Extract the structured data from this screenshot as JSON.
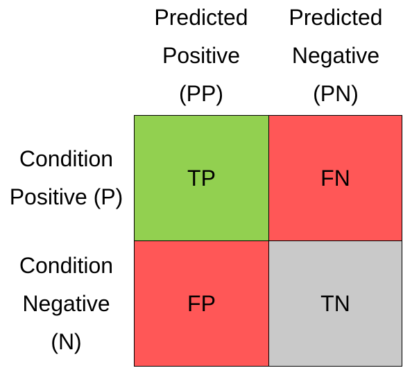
{
  "columns": [
    {
      "lines": [
        "Predicted",
        "Positive",
        "(PP)"
      ]
    },
    {
      "lines": [
        "Predicted",
        "Negative",
        "(PN)"
      ]
    }
  ],
  "rows": [
    {
      "lines": [
        "Condition",
        "Positive (P)"
      ]
    },
    {
      "lines": [
        "Condition",
        "Negative",
        "(N)"
      ]
    }
  ],
  "cells": [
    {
      "label": "TP",
      "color": "#92d050"
    },
    {
      "label": "FN",
      "color": "#ff5757"
    },
    {
      "label": "FP",
      "color": "#ff5757"
    },
    {
      "label": "TN",
      "color": "#c9c9c9"
    }
  ]
}
